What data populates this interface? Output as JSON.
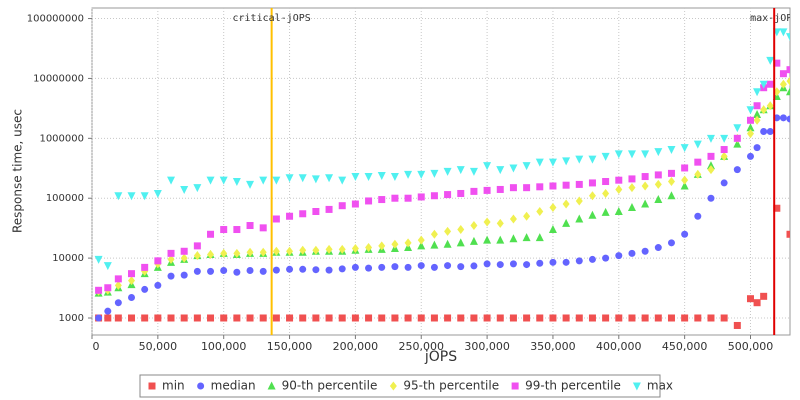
{
  "chart_data": {
    "type": "scatter",
    "x_label": "jOPS",
    "y_label": "Response time, usec",
    "log_y": true,
    "grid": true,
    "legend": "bottom",
    "xlim": [
      0,
      530000
    ],
    "ylim": [
      520,
      150000000
    ],
    "xticks": [
      0,
      {
        "value": 50000,
        "label": "50,000"
      },
      {
        "value": 100000,
        "label": "100,000"
      },
      {
        "value": 150000,
        "label": "150,000"
      },
      {
        "value": 200000,
        "label": "200,000"
      },
      {
        "value": 250000,
        "label": "250,000"
      },
      {
        "value": 300000,
        "label": "300,000"
      },
      {
        "value": 350000,
        "label": "350,000"
      },
      {
        "value": 400000,
        "label": "400,000"
      },
      {
        "value": 450000,
        "label": "450,000"
      },
      {
        "value": 500000,
        "label": "500,000"
      }
    ],
    "yticks": [
      1000,
      10000,
      100000,
      1000000,
      10000000,
      100000000
    ],
    "vlines": [
      {
        "label": "critical-jOPS",
        "x": 136400,
        "color": "#ffc000"
      },
      {
        "label": "max-jOPS",
        "x": 518000,
        "color": "#e00000"
      }
    ],
    "x": [
      5000,
      12000,
      20000,
      30000,
      40000,
      50000,
      60000,
      70000,
      80000,
      90000,
      100000,
      110000,
      120000,
      130000,
      140000,
      150000,
      160000,
      170000,
      180000,
      190000,
      200000,
      210000,
      220000,
      230000,
      240000,
      250000,
      260000,
      270000,
      280000,
      290000,
      300000,
      310000,
      320000,
      330000,
      340000,
      350000,
      360000,
      370000,
      380000,
      390000,
      400000,
      410000,
      420000,
      430000,
      440000,
      450000,
      460000,
      470000,
      480000,
      490000,
      500000,
      505000,
      510000,
      515000,
      520000,
      525000,
      530000
    ],
    "series": [
      {
        "name": "min",
        "color": "#f05050",
        "marker": "square",
        "values": [
          1000,
          1000,
          1000,
          1000,
          1000,
          1000,
          1000,
          1000,
          1000,
          1000,
          1000,
          1000,
          1000,
          1000,
          1000,
          1000,
          1000,
          1000,
          1000,
          1000,
          1000,
          1000,
          1000,
          1000,
          1000,
          1000,
          1000,
          1000,
          1000,
          1000,
          1000,
          1000,
          1000,
          1000,
          1000,
          1000,
          1000,
          1000,
          1000,
          1000,
          1000,
          1000,
          1000,
          1000,
          1000,
          1000,
          1000,
          1000,
          1000,
          750,
          2100,
          1800,
          2300,
          null,
          68000,
          null,
          25000
        ]
      },
      {
        "name": "median",
        "color": "#6464ff",
        "marker": "circle",
        "values": [
          1000,
          1300,
          1800,
          2200,
          3000,
          3500,
          5000,
          5200,
          6000,
          6000,
          6200,
          5800,
          6200,
          6000,
          6300,
          6500,
          6500,
          6400,
          6300,
          6600,
          7000,
          6800,
          7000,
          7200,
          7000,
          7500,
          7000,
          7500,
          7200,
          7400,
          8000,
          7800,
          8000,
          7800,
          8200,
          8500,
          8500,
          9000,
          9500,
          10000,
          11000,
          12000,
          13000,
          15000,
          18000,
          25000,
          50000,
          100000,
          180000,
          300000,
          500000,
          700000,
          1300000,
          1300000,
          2200000,
          2200000,
          2100000
        ]
      },
      {
        "name": "90-th percentile",
        "color": "#50e050",
        "marker": "triangle",
        "values": [
          2600,
          2700,
          3200,
          3600,
          5500,
          7000,
          8500,
          9500,
          11000,
          11500,
          12000,
          11500,
          12000,
          12000,
          12500,
          12500,
          12500,
          13000,
          13000,
          13000,
          13500,
          14000,
          14000,
          14500,
          15000,
          16000,
          16500,
          17000,
          18000,
          19000,
          20000,
          20000,
          21000,
          22000,
          22000,
          30000,
          38000,
          45000,
          52000,
          58000,
          60000,
          70000,
          80000,
          95000,
          110000,
          160000,
          250000,
          350000,
          500000,
          800000,
          1500000,
          2500000,
          3000000,
          3500000,
          5000000,
          7000000,
          6000000
        ]
      },
      {
        "name": "95-th percentile",
        "color": "#f0f050",
        "marker": "diamond",
        "values": [
          2800,
          2900,
          3500,
          4200,
          6000,
          8000,
          9500,
          10000,
          11000,
          11500,
          12000,
          12000,
          12500,
          12500,
          13000,
          13000,
          13500,
          13500,
          14000,
          14000,
          14500,
          15000,
          16000,
          17000,
          18000,
          20000,
          25000,
          28000,
          30000,
          35000,
          40000,
          38000,
          45000,
          50000,
          60000,
          70000,
          80000,
          90000,
          110000,
          120000,
          140000,
          150000,
          160000,
          170000,
          190000,
          200000,
          250000,
          300000,
          500000,
          1000000,
          1200000,
          2000000,
          3000000,
          3500000,
          6000000,
          8000000,
          9000000
        ]
      },
      {
        "name": "99-th percentile",
        "color": "#f050f0",
        "marker": "square",
        "values": [
          2900,
          3200,
          4500,
          5500,
          7000,
          9000,
          12000,
          13000,
          16000,
          25000,
          30000,
          30000,
          35000,
          32000,
          45000,
          50000,
          55000,
          60000,
          65000,
          75000,
          80000,
          90000,
          95000,
          100000,
          100000,
          105000,
          110000,
          115000,
          120000,
          130000,
          135000,
          140000,
          150000,
          150000,
          155000,
          160000,
          165000,
          170000,
          180000,
          190000,
          200000,
          210000,
          230000,
          245000,
          260000,
          320000,
          400000,
          500000,
          650000,
          1000000,
          2000000,
          3500000,
          7000000,
          8000000,
          18000000,
          12000000,
          14000000
        ]
      },
      {
        "name": "max",
        "color": "#50f0f0",
        "marker": "triangle-down",
        "values": [
          9500,
          7500,
          110000,
          110000,
          110000,
          120000,
          200000,
          140000,
          150000,
          200000,
          200000,
          190000,
          170000,
          200000,
          200000,
          220000,
          220000,
          210000,
          220000,
          200000,
          230000,
          230000,
          240000,
          230000,
          250000,
          250000,
          260000,
          280000,
          300000,
          280000,
          350000,
          300000,
          320000,
          350000,
          400000,
          400000,
          420000,
          450000,
          450000,
          500000,
          550000,
          550000,
          550000,
          600000,
          650000,
          700000,
          800000,
          1000000,
          1000000,
          1500000,
          3000000,
          6000000,
          8000000,
          20000000,
          60000000,
          60000000,
          50000000
        ]
      }
    ]
  }
}
